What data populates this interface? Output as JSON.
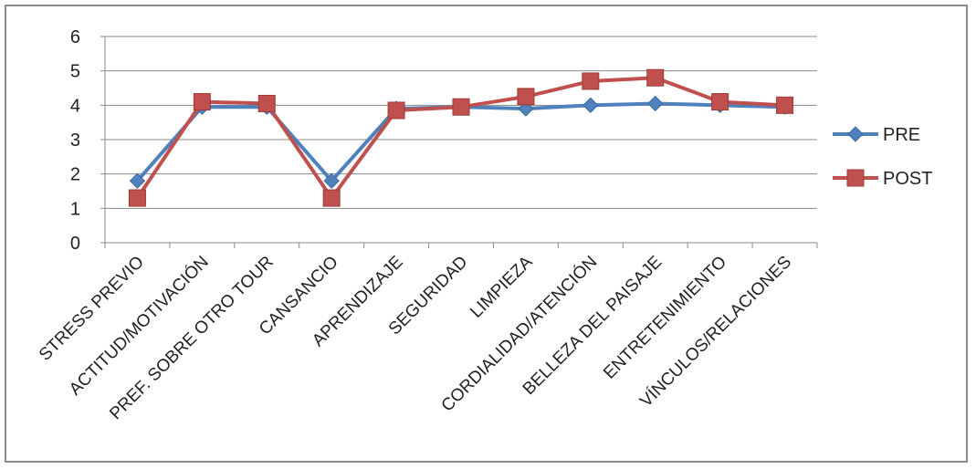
{
  "chart_data": {
    "type": "line",
    "categories": [
      "STRESS PREVIO",
      "ACTITUD/MOTIVACIÓN",
      "PREF. SOBRE OTRO TOUR",
      "CANSANCIO",
      "APRENDIZAJE",
      "SEGURIDAD",
      "LIMPIEZA",
      "CORDIALIDAD/ATENCIÓN",
      "BELLEZA DEL PAISAJE",
      "ENTRETENIMIENTO",
      "VÍNCULOS/RELACIONES"
    ],
    "series": [
      {
        "name": "PRE",
        "color": "#4f81bd",
        "marker": "diamond",
        "values": [
          1.8,
          3.95,
          3.95,
          1.8,
          3.9,
          3.95,
          3.9,
          4.0,
          4.05,
          4.0,
          3.95
        ]
      },
      {
        "name": "POST",
        "color": "#c0504d",
        "marker": "square",
        "values": [
          1.3,
          4.1,
          4.05,
          1.3,
          3.85,
          3.95,
          4.25,
          4.7,
          4.8,
          4.1,
          4.0
        ]
      }
    ],
    "ylim": [
      0,
      6
    ],
    "yticks": [
      0,
      1,
      2,
      3,
      4,
      5,
      6
    ],
    "grid": true,
    "legend": "right"
  }
}
